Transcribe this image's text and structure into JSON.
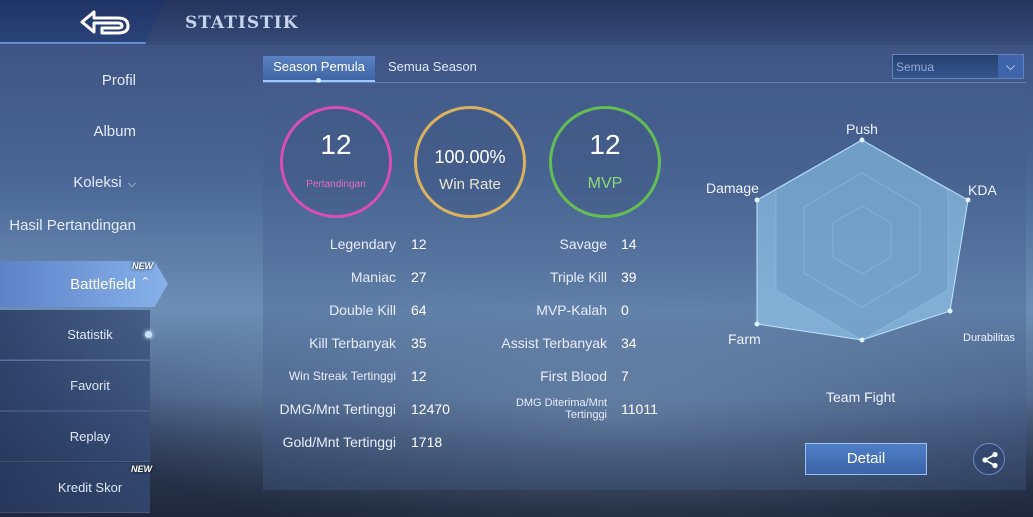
{
  "header": {
    "title": "STATISTIK"
  },
  "sidebar": {
    "items": [
      {
        "label": "Profil"
      },
      {
        "label": "Album"
      },
      {
        "label": "Koleksi"
      },
      {
        "label": "Hasil Pertandingan"
      }
    ],
    "active": {
      "label": "Battlefield",
      "badge": "NEW"
    },
    "subitems": [
      {
        "label": "Statistik"
      },
      {
        "label": "Favorit"
      },
      {
        "label": "Replay"
      },
      {
        "label": "Kredit Skor",
        "badge": "NEW"
      }
    ]
  },
  "tabs": [
    {
      "label": "Season Pemula",
      "active": true
    },
    {
      "label": "Semua Season",
      "active": false
    }
  ],
  "filter": {
    "selected": "Semua"
  },
  "summary": {
    "matches": {
      "value": "12",
      "label": "Pertandingan"
    },
    "win_rate": {
      "value": "100.00%",
      "label": "Win Rate"
    },
    "mvp": {
      "value": "12",
      "label": "MVP"
    }
  },
  "stats_left": [
    {
      "label": "Legendary",
      "value": "12"
    },
    {
      "label": "Maniac",
      "value": "27"
    },
    {
      "label": "Double Kill",
      "value": "64"
    },
    {
      "label": "Kill Terbanyak",
      "value": "35"
    },
    {
      "label": "Win Streak Tertinggi",
      "value": "12"
    },
    {
      "label": "DMG/Mnt Tertinggi",
      "value": "12470"
    },
    {
      "label": "Gold/Mnt Tertinggi",
      "value": "1718"
    }
  ],
  "stats_right": [
    {
      "label": "Savage",
      "value": "14"
    },
    {
      "label": "Triple Kill",
      "value": "39"
    },
    {
      "label": "MVP-Kalah",
      "value": "0"
    },
    {
      "label": "Assist Terbanyak",
      "value": "34"
    },
    {
      "label": "First Blood",
      "value": "7"
    },
    {
      "label": "DMG Diterima/Mnt Tertinggi",
      "value": "11011"
    }
  ],
  "radar": {
    "labels": [
      "Push",
      "KDA",
      "Durabilitas",
      "Team Fight",
      "Farm",
      "Damage"
    ]
  },
  "actions": {
    "detail_label": "Detail"
  },
  "colors": {
    "pink": "#d74fb3",
    "gold": "#d9b260",
    "green": "#64bd52",
    "accent": "#9cc7ff"
  }
}
